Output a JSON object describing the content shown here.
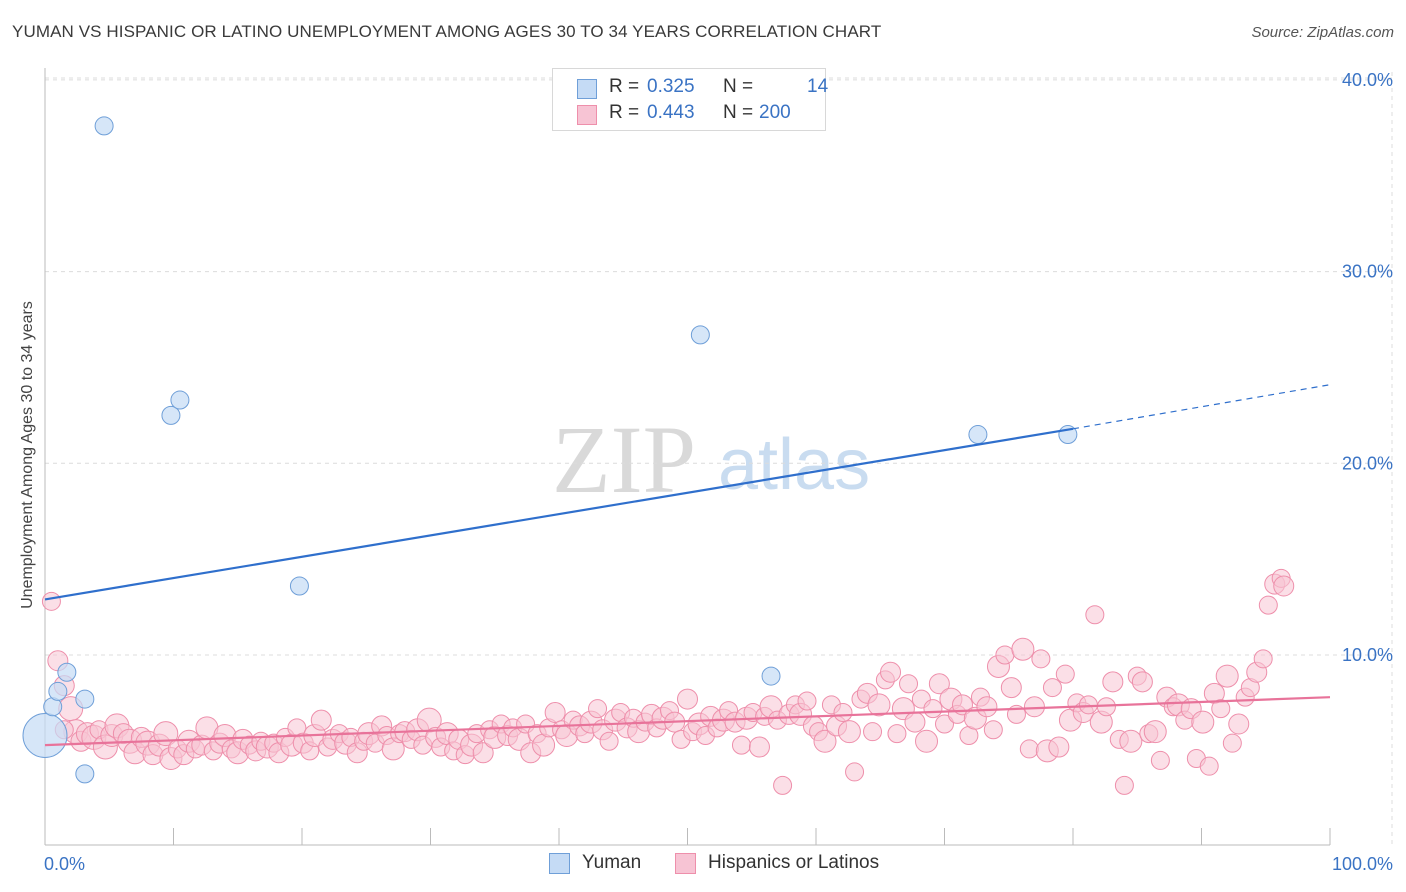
{
  "title": "YUMAN VS HISPANIC OR LATINO UNEMPLOYMENT AMONG AGES 30 TO 34 YEARS CORRELATION CHART",
  "source": "Source: ZipAtlas.com",
  "watermark": {
    "zip": "ZIP",
    "atlas": "atlas"
  },
  "colors": {
    "yuman_fill": "#c5dbf5",
    "yuman_stroke": "#6f9fd8",
    "yuman_line": "#2f6fcc",
    "hisp_fill": "#f7c4d4",
    "hisp_stroke": "#ee8fab",
    "hisp_line": "#e8739a",
    "tick_text": "#3a73c4",
    "grid": "#dcdcdc"
  },
  "legend": {
    "rows": [
      {
        "r_label": "R =",
        "r_value": "0.325",
        "n_label": "N =",
        "n_value": "14"
      },
      {
        "r_label": "R =",
        "r_value": "0.443",
        "n_label": "N =",
        "n_value": "200"
      }
    ]
  },
  "bottom_legend": {
    "yuman": "Yuman",
    "hisp": "Hispanics or Latinos"
  },
  "chart_data": {
    "type": "scatter",
    "title": "YUMAN VS HISPANIC OR LATINO UNEMPLOYMENT AMONG AGES 30 TO 34 YEARS CORRELATION CHART",
    "xlabel": "",
    "ylabel": "Unemployment Among Ages 30 to 34 years",
    "xlim": [
      0,
      100
    ],
    "ylim": [
      0,
      41
    ],
    "x_tick_labels": [
      "0.0%",
      "100.0%"
    ],
    "y_ticks": [
      10,
      20,
      30,
      40
    ],
    "y_tick_labels": [
      "10.0%",
      "20.0%",
      "30.0%",
      "40.0%"
    ],
    "grid": true,
    "legend_position": "top-center",
    "series": [
      {
        "name": "Yuman",
        "r": 0.325,
        "n": 14,
        "trend": {
          "x0": 0,
          "y0": 12.9,
          "x1": 80,
          "y1": 21.8,
          "dashed_to_x": 100,
          "dashed_to_y": 24.1
        },
        "points": [
          [
            0.0,
            5.8,
            22
          ],
          [
            0.6,
            7.3,
            9
          ],
          [
            1.0,
            8.1,
            9
          ],
          [
            1.7,
            9.1,
            9
          ],
          [
            3.1,
            7.7,
            9
          ],
          [
            3.1,
            3.8,
            9
          ],
          [
            4.6,
            37.6,
            9
          ],
          [
            9.8,
            22.5,
            9
          ],
          [
            10.5,
            23.3,
            9
          ],
          [
            19.8,
            13.6,
            9
          ],
          [
            51.0,
            26.7,
            9
          ],
          [
            56.5,
            8.9,
            9
          ],
          [
            72.6,
            21.5,
            9
          ],
          [
            79.6,
            21.5,
            9
          ]
        ]
      },
      {
        "name": "Hispanics or Latinos",
        "r": 0.443,
        "n": 200,
        "trend": {
          "x0": 0,
          "y0": 5.3,
          "x1": 100,
          "y1": 7.8
        },
        "points": [
          [
            0.5,
            12.8,
            9
          ],
          [
            1.0,
            9.7,
            10
          ],
          [
            1.5,
            8.4,
            10
          ],
          [
            2.0,
            7.2,
            12
          ],
          [
            2.4,
            6.0,
            12
          ],
          [
            2.8,
            5.5,
            10
          ],
          [
            3.3,
            5.9,
            11
          ],
          [
            3.8,
            5.7,
            12
          ],
          [
            4.2,
            6.1,
            9
          ],
          [
            4.7,
            5.2,
            12
          ],
          [
            5.2,
            5.8,
            11
          ],
          [
            5.6,
            6.3,
            12
          ],
          [
            6.1,
            5.9,
            10
          ],
          [
            6.6,
            5.5,
            12
          ],
          [
            7.0,
            4.9,
            11
          ],
          [
            7.5,
            5.7,
            10
          ],
          [
            8.0,
            5.4,
            12
          ],
          [
            8.4,
            4.8,
            10
          ],
          [
            8.9,
            5.3,
            11
          ],
          [
            9.4,
            5.9,
            12
          ],
          [
            9.8,
            4.6,
            11
          ],
          [
            10.3,
            5.1,
            9
          ],
          [
            10.8,
            4.8,
            10
          ],
          [
            11.2,
            5.5,
            11
          ],
          [
            11.7,
            5.1,
            9
          ],
          [
            12.2,
            5.3,
            10
          ],
          [
            12.6,
            6.2,
            11
          ],
          [
            13.1,
            5.0,
            9
          ],
          [
            13.6,
            5.4,
            10
          ],
          [
            14.0,
            5.8,
            11
          ],
          [
            14.5,
            5.1,
            9
          ],
          [
            15.0,
            4.9,
            11
          ],
          [
            15.4,
            5.6,
            10
          ],
          [
            15.9,
            5.3,
            9
          ],
          [
            16.4,
            5.0,
            10
          ],
          [
            16.8,
            5.5,
            9
          ],
          [
            17.3,
            5.2,
            11
          ],
          [
            17.8,
            5.4,
            9
          ],
          [
            18.2,
            4.9,
            10
          ],
          [
            18.7,
            5.7,
            9
          ],
          [
            19.2,
            5.3,
            11
          ],
          [
            19.6,
            6.2,
            9
          ],
          [
            20.1,
            5.4,
            10
          ],
          [
            20.6,
            5.0,
            9
          ],
          [
            21.0,
            5.8,
            11
          ],
          [
            21.5,
            6.6,
            10
          ],
          [
            22.0,
            5.2,
            9
          ],
          [
            22.4,
            5.6,
            10
          ],
          [
            22.9,
            5.9,
            9
          ],
          [
            23.4,
            5.4,
            11
          ],
          [
            23.8,
            5.7,
            9
          ],
          [
            24.3,
            4.9,
            10
          ],
          [
            24.8,
            5.5,
            9
          ],
          [
            25.2,
            5.9,
            11
          ],
          [
            25.7,
            5.4,
            9
          ],
          [
            26.2,
            6.3,
            10
          ],
          [
            26.6,
            5.8,
            9
          ],
          [
            27.1,
            5.1,
            11
          ],
          [
            27.6,
            5.9,
            9
          ],
          [
            28.0,
            6.0,
            10
          ],
          [
            28.5,
            5.6,
            9
          ],
          [
            29.0,
            6.1,
            11
          ],
          [
            29.4,
            5.3,
            9
          ],
          [
            29.9,
            6.6,
            12
          ],
          [
            30.4,
            5.7,
            10
          ],
          [
            30.8,
            5.2,
            9
          ],
          [
            31.3,
            5.9,
            11
          ],
          [
            31.8,
            5.0,
            9
          ],
          [
            32.2,
            5.6,
            10
          ],
          [
            32.7,
            4.8,
            9
          ],
          [
            33.2,
            5.3,
            11
          ],
          [
            33.6,
            5.9,
            9
          ],
          [
            34.1,
            4.9,
            10
          ],
          [
            34.6,
            6.1,
            9
          ],
          [
            35.0,
            5.7,
            11
          ],
          [
            35.5,
            6.4,
            9
          ],
          [
            36.0,
            5.8,
            10
          ],
          [
            36.4,
            6.2,
            9
          ],
          [
            36.9,
            5.6,
            11
          ],
          [
            37.4,
            6.4,
            9
          ],
          [
            37.8,
            4.9,
            10
          ],
          [
            38.3,
            5.9,
            9
          ],
          [
            38.8,
            5.3,
            11
          ],
          [
            39.2,
            6.2,
            9
          ],
          [
            39.7,
            7.0,
            10
          ],
          [
            40.2,
            6.1,
            9
          ],
          [
            40.6,
            5.8,
            11
          ],
          [
            41.1,
            6.6,
            9
          ],
          [
            41.6,
            6.3,
            10
          ],
          [
            42.0,
            5.9,
            9
          ],
          [
            42.5,
            6.5,
            11
          ],
          [
            43.0,
            7.2,
            9
          ],
          [
            43.4,
            6.1,
            10
          ],
          [
            43.9,
            5.5,
            9
          ],
          [
            44.4,
            6.6,
            11
          ],
          [
            44.8,
            7.0,
            9
          ],
          [
            45.3,
            6.2,
            10
          ],
          [
            45.8,
            6.7,
            9
          ],
          [
            46.2,
            6.0,
            11
          ],
          [
            46.7,
            6.5,
            9
          ],
          [
            47.2,
            6.9,
            10
          ],
          [
            47.6,
            6.2,
            9
          ],
          [
            48.1,
            6.7,
            11
          ],
          [
            48.6,
            7.1,
            9
          ],
          [
            49.0,
            6.5,
            10
          ],
          [
            49.5,
            5.6,
            9
          ],
          [
            50.0,
            7.7,
            10
          ],
          [
            50.4,
            6.0,
            9
          ],
          [
            50.9,
            6.4,
            11
          ],
          [
            51.4,
            5.8,
            9
          ],
          [
            51.8,
            6.8,
            10
          ],
          [
            52.3,
            6.2,
            9
          ],
          [
            52.8,
            6.6,
            11
          ],
          [
            53.2,
            7.1,
            9
          ],
          [
            53.7,
            6.5,
            10
          ],
          [
            54.2,
            5.3,
            9
          ],
          [
            54.6,
            6.7,
            11
          ],
          [
            55.1,
            7.0,
            9
          ],
          [
            55.6,
            5.2,
            10
          ],
          [
            56.0,
            6.8,
            9
          ],
          [
            56.5,
            7.3,
            11
          ],
          [
            57.0,
            6.6,
            9
          ],
          [
            57.4,
            3.2,
            9
          ],
          [
            57.9,
            6.9,
            10
          ],
          [
            58.4,
            7.4,
            9
          ],
          [
            58.8,
            6.9,
            11
          ],
          [
            59.3,
            7.6,
            9
          ],
          [
            59.8,
            6.3,
            10
          ],
          [
            60.2,
            6.0,
            9
          ],
          [
            60.7,
            5.5,
            11
          ],
          [
            61.2,
            7.4,
            9
          ],
          [
            61.6,
            6.3,
            10
          ],
          [
            62.1,
            7.0,
            9
          ],
          [
            62.6,
            6.0,
            11
          ],
          [
            63.0,
            3.9,
            9
          ],
          [
            63.5,
            7.7,
            9
          ],
          [
            64.0,
            8.0,
            10
          ],
          [
            64.4,
            6.0,
            9
          ],
          [
            64.9,
            7.4,
            11
          ],
          [
            65.4,
            8.7,
            9
          ],
          [
            65.8,
            9.1,
            10
          ],
          [
            66.3,
            5.9,
            9
          ],
          [
            66.8,
            7.2,
            11
          ],
          [
            67.2,
            8.5,
            9
          ],
          [
            67.7,
            6.5,
            10
          ],
          [
            68.2,
            7.7,
            9
          ],
          [
            68.6,
            5.5,
            11
          ],
          [
            69.1,
            7.2,
            9
          ],
          [
            69.6,
            8.5,
            10
          ],
          [
            70.0,
            6.4,
            9
          ],
          [
            70.5,
            7.7,
            11
          ],
          [
            71.0,
            6.9,
            9
          ],
          [
            71.4,
            7.4,
            10
          ],
          [
            71.9,
            5.8,
            9
          ],
          [
            72.4,
            6.7,
            11
          ],
          [
            72.8,
            7.8,
            9
          ],
          [
            73.3,
            7.3,
            10
          ],
          [
            73.8,
            6.1,
            9
          ],
          [
            74.2,
            9.4,
            11
          ],
          [
            74.7,
            10.0,
            9
          ],
          [
            75.2,
            8.3,
            10
          ],
          [
            75.6,
            6.9,
            9
          ],
          [
            76.1,
            10.3,
            11
          ],
          [
            76.6,
            5.1,
            9
          ],
          [
            77.0,
            7.3,
            10
          ],
          [
            77.5,
            9.8,
            9
          ],
          [
            78.0,
            5.0,
            11
          ],
          [
            78.4,
            8.3,
            9
          ],
          [
            78.9,
            5.2,
            10
          ],
          [
            79.4,
            9.0,
            9
          ],
          [
            79.8,
            6.6,
            11
          ],
          [
            80.3,
            7.5,
            9
          ],
          [
            80.8,
            7.0,
            10
          ],
          [
            81.2,
            7.4,
            9
          ],
          [
            81.7,
            12.1,
            9
          ],
          [
            82.2,
            6.5,
            11
          ],
          [
            82.6,
            7.3,
            9
          ],
          [
            83.1,
            8.6,
            10
          ],
          [
            83.6,
            5.6,
            9
          ],
          [
            84.0,
            3.2,
            9
          ],
          [
            84.5,
            5.5,
            11
          ],
          [
            85.0,
            8.9,
            9
          ],
          [
            85.4,
            8.6,
            10
          ],
          [
            85.9,
            5.9,
            9
          ],
          [
            86.4,
            6.0,
            11
          ],
          [
            86.8,
            4.5,
            9
          ],
          [
            87.3,
            7.8,
            10
          ],
          [
            87.8,
            7.3,
            9
          ],
          [
            88.2,
            7.4,
            11
          ],
          [
            88.7,
            6.6,
            9
          ],
          [
            89.2,
            7.2,
            10
          ],
          [
            89.6,
            4.6,
            9
          ],
          [
            90.1,
            6.5,
            11
          ],
          [
            90.6,
            4.2,
            9
          ],
          [
            91.0,
            8.0,
            10
          ],
          [
            91.5,
            7.2,
            9
          ],
          [
            92.0,
            8.9,
            11
          ],
          [
            92.4,
            5.4,
            9
          ],
          [
            92.9,
            6.4,
            10
          ],
          [
            93.4,
            7.8,
            9
          ],
          [
            93.8,
            8.3,
            9
          ],
          [
            94.3,
            9.1,
            10
          ],
          [
            94.8,
            9.8,
            9
          ],
          [
            95.2,
            12.6,
            9
          ],
          [
            95.7,
            13.7,
            10
          ],
          [
            96.2,
            14.0,
            9
          ],
          [
            96.4,
            13.6,
            10
          ],
          [
            1.5,
            6.1,
            9
          ]
        ]
      }
    ]
  }
}
